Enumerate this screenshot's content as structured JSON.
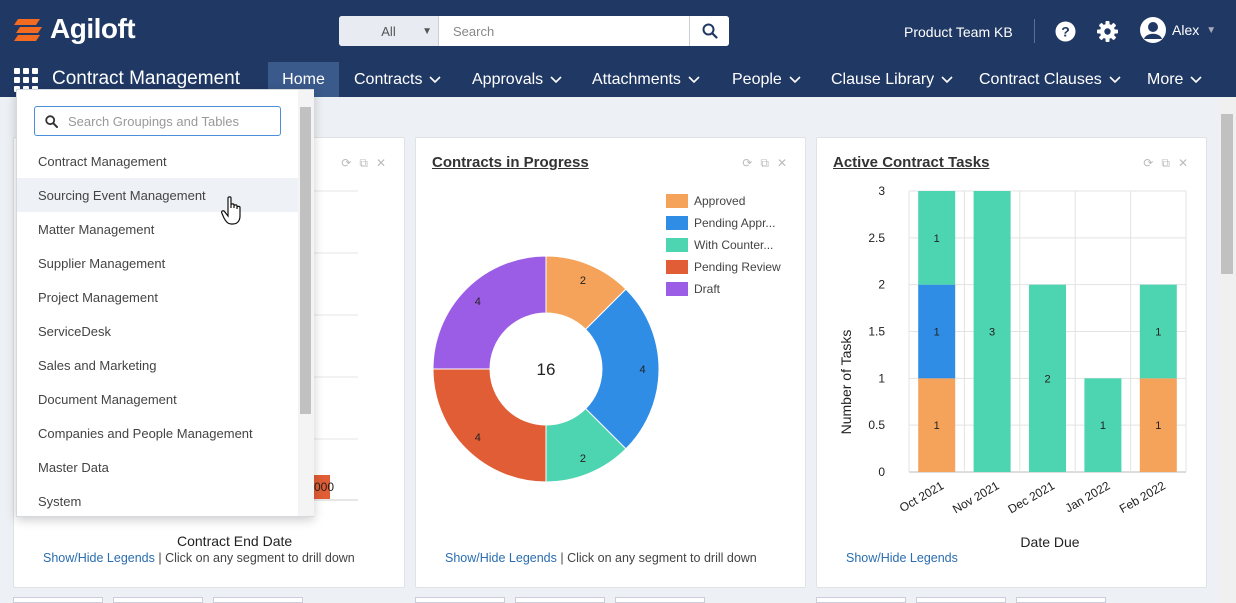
{
  "brand": {
    "name": "Agiloft",
    "accent": "#f26b21",
    "nav_bg": "#203864"
  },
  "search": {
    "scope": "All",
    "placeholder": "Search"
  },
  "header": {
    "kb_name": "Product Team KB",
    "user_name": "Alex"
  },
  "nav": {
    "app_title": "Contract Management",
    "tabs": [
      {
        "label": "Home"
      },
      {
        "label": "Contracts"
      },
      {
        "label": "Approvals"
      },
      {
        "label": "Attachments"
      },
      {
        "label": "People"
      },
      {
        "label": "Clause Library"
      },
      {
        "label": "Contract Clauses"
      },
      {
        "label": "More"
      }
    ]
  },
  "dropdown": {
    "placeholder": "Search Groupings and Tables",
    "items": [
      {
        "label": "Contract Management"
      },
      {
        "label": "Sourcing Event Management"
      },
      {
        "label": "Matter Management"
      },
      {
        "label": "Supplier Management"
      },
      {
        "label": "Project Management"
      },
      {
        "label": "ServiceDesk"
      },
      {
        "label": "Sales and Marketing"
      },
      {
        "label": "Document Management"
      },
      {
        "label": "Companies and People Management"
      },
      {
        "label": "Master Data"
      },
      {
        "label": "System"
      }
    ]
  },
  "card1": {
    "xlabel": "Contract End Date",
    "bar_label": "000",
    "footer_link": "Show/Hide Legends",
    "footer_text": " | Click on any segment to drill down"
  },
  "card2": {
    "title": "Contracts in Progress",
    "footer_link": "Show/Hide Legends",
    "footer_text": " | Click on any segment to drill down"
  },
  "card3": {
    "title": "Active Contract Tasks",
    "footer_link": "Show/Hide Legends"
  },
  "chart_data": [
    {
      "type": "pie",
      "title": "Contracts in Progress",
      "center_label": "16",
      "slices": [
        {
          "name": "Approved",
          "value": 2,
          "color": "#f5a35a"
        },
        {
          "name": "Pending Appr...",
          "value": 4,
          "color": "#2f8de6"
        },
        {
          "name": "With Counter...",
          "value": 2,
          "color": "#4dd4b0"
        },
        {
          "name": "Pending Review",
          "value": 4,
          "color": "#e05d35"
        },
        {
          "name": "Draft",
          "value": 4,
          "color": "#9b5de5"
        }
      ],
      "legend_position": "top-right"
    },
    {
      "type": "bar",
      "stacked": true,
      "title": "Active Contract Tasks",
      "xlabel": "Date Due",
      "ylabel": "Number of Tasks",
      "categories": [
        "Oct 2021",
        "Nov 2021",
        "Dec 2021",
        "Jan 2022",
        "Feb 2022"
      ],
      "ylim": [
        0,
        3
      ],
      "yticks": [
        "0",
        "0.5",
        "1",
        "1.5",
        "2",
        "2.5",
        "3"
      ],
      "series": [
        {
          "color": "#f5a35a",
          "values": [
            1,
            0,
            0,
            0,
            1
          ]
        },
        {
          "color": "#2f8de6",
          "values": [
            1,
            0,
            0,
            0,
            0
          ]
        },
        {
          "color": "#4dd4b0",
          "values": [
            1,
            3,
            2,
            1,
            1
          ]
        }
      ],
      "grid": true
    }
  ]
}
